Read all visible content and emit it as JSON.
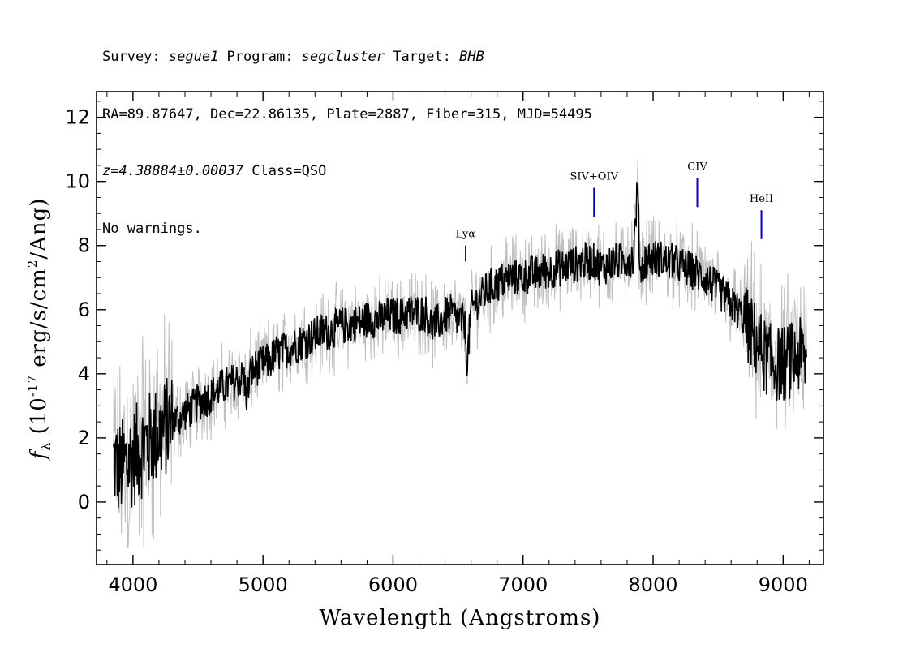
{
  "header": {
    "survey_label": "Survey: ",
    "survey": "segue1",
    "program_label": " Program: ",
    "program": "segcluster",
    "target_label": " Target: ",
    "target": "BHB",
    "line2": "RA=89.87647, Dec=22.86135, Plate=2887, Fiber=315, MJD=54495",
    "redshift": "z=4.38884±0.00037",
    "class_text": " Class=QSO",
    "warnings": "No warnings."
  },
  "chart_data": {
    "type": "line",
    "xlabel": "Wavelength (Angstroms)",
    "ylabel": "f_λ (10^-17 erg/s/cm^2/Ang)",
    "xlim": [
      3720,
      9310
    ],
    "ylim": [
      -1.95,
      12.8
    ],
    "xticks": [
      4000,
      5000,
      6000,
      7000,
      8000,
      9000
    ],
    "yticks": [
      0,
      2,
      4,
      6,
      8,
      10,
      12
    ],
    "series": [
      {
        "style": "black",
        "x": [
          3850,
          3900,
          3950,
          4000,
          4050,
          4100,
          4150,
          4200,
          4250,
          4300,
          4350,
          4400,
          4450,
          4500,
          4550,
          4600,
          4650,
          4700,
          4750,
          4800,
          4850,
          4880,
          4900,
          4950,
          5000,
          5050,
          5100,
          5150,
          5200,
          5250,
          5300,
          5350,
          5400,
          5450,
          5500,
          5550,
          5600,
          5650,
          5700,
          5750,
          5800,
          5850,
          5900,
          5950,
          6000,
          6050,
          6100,
          6150,
          6200,
          6250,
          6300,
          6350,
          6400,
          6450,
          6500,
          6550,
          6570,
          6600,
          6650,
          6700,
          6750,
          6800,
          6850,
          6900,
          6950,
          7000,
          7050,
          7100,
          7150,
          7200,
          7250,
          7300,
          7350,
          7400,
          7450,
          7500,
          7550,
          7600,
          7650,
          7700,
          7750,
          7800,
          7850,
          7880,
          7900,
          7950,
          8000,
          8050,
          8100,
          8150,
          8200,
          8250,
          8300,
          8350,
          8400,
          8450,
          8500,
          8550,
          8600,
          8650,
          8700,
          8750,
          8800,
          8850,
          8900,
          8950,
          9000,
          9050,
          9100,
          9150,
          9180
        ],
        "y": [
          1.3,
          1.0,
          1.2,
          1.4,
          1.6,
          1.8,
          2.0,
          2.1,
          2.3,
          2.5,
          2.6,
          2.8,
          2.9,
          3.1,
          3.2,
          3.3,
          3.5,
          3.6,
          3.7,
          3.8,
          3.9,
          3.2,
          4.0,
          4.2,
          4.3,
          4.4,
          4.6,
          4.7,
          4.8,
          4.9,
          5.0,
          5.1,
          5.2,
          5.3,
          5.3,
          5.4,
          5.5,
          5.5,
          5.6,
          5.6,
          5.7,
          5.7,
          5.7,
          5.8,
          5.8,
          5.8,
          5.9,
          5.9,
          5.9,
          5.9,
          5.5,
          5.6,
          5.8,
          5.9,
          5.7,
          5.6,
          4.3,
          6.0,
          6.3,
          6.5,
          6.7,
          6.8,
          6.9,
          7.0,
          7.0,
          7.0,
          7.1,
          7.1,
          7.2,
          7.2,
          7.3,
          7.3,
          7.4,
          7.4,
          7.5,
          7.5,
          7.5,
          7.3,
          7.4,
          7.5,
          7.5,
          7.6,
          7.6,
          9.9,
          7.2,
          7.6,
          7.6,
          7.6,
          7.5,
          7.5,
          7.4,
          7.3,
          7.2,
          7.1,
          7.0,
          6.8,
          6.6,
          6.4,
          6.2,
          6.0,
          5.7,
          5.3,
          5.0,
          4.6,
          4.4,
          4.3,
          4.3,
          4.4,
          4.5,
          4.6,
          4.3
        ]
      }
    ],
    "emission_lines": [
      {
        "label": "Lyα",
        "x": 6557,
        "y_top": 8.0,
        "y_bottom": 7.5,
        "color": "#000000"
      },
      {
        "label": "SIV+OIV",
        "x": 7546,
        "y_top": 9.8,
        "y_bottom": 8.9,
        "color": "#0000cc"
      },
      {
        "label": "CIV",
        "x": 8340,
        "y_top": 10.1,
        "y_bottom": 9.2,
        "color": "#0000cc"
      },
      {
        "label": "HeII",
        "x": 8833,
        "y_top": 9.1,
        "y_bottom": 8.2,
        "color": "#0000cc"
      }
    ],
    "colors": {
      "flux": "#000000",
      "error": "#bfbfbf",
      "line_marker": "#0000cc"
    }
  }
}
